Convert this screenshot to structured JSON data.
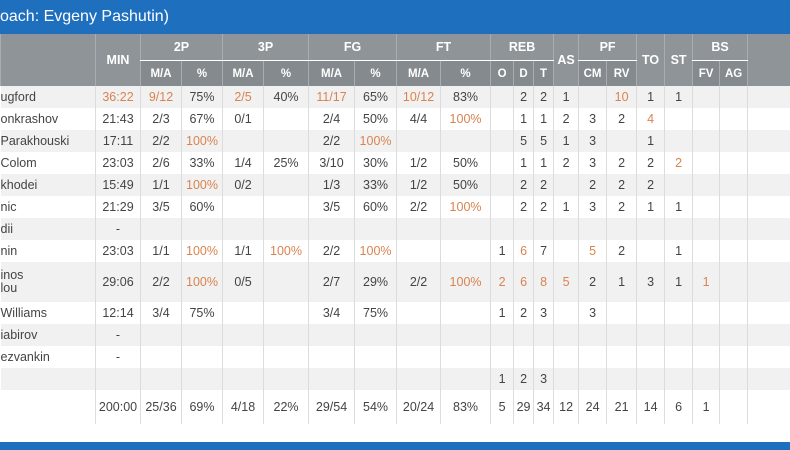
{
  "header": {
    "title": "oach: Evgeny Pashutin)"
  },
  "table": {
    "highlight_color": "#d9834f",
    "group_headers": [
      "MIN",
      "2P",
      "3P",
      "FG",
      "FT",
      "REB",
      "AS",
      "PF",
      "TO",
      "ST",
      "BS"
    ],
    "sub_headers": [
      "M/A",
      "%",
      "M/A",
      "%",
      "M/A",
      "%",
      "M/A",
      "%",
      "O",
      "D",
      "T",
      "CM",
      "RV",
      "FV",
      "AG"
    ],
    "rows": [
      [
        "ugford",
        {
          "text": "36:22",
          "highlight": true
        },
        {
          "text": "9/12",
          "highlight": true
        },
        "75%",
        {
          "text": "2/5",
          "highlight": true
        },
        "40%",
        {
          "text": "11/17",
          "highlight": true
        },
        "65%",
        {
          "text": "10/12",
          "highlight": true
        },
        "83%",
        null,
        "2",
        "2",
        "1",
        null,
        {
          "text": "10",
          "highlight": true
        },
        "1",
        "1",
        null,
        null
      ],
      [
        "onkrashov",
        "21:43",
        "2/3",
        "67%",
        "0/1",
        null,
        "2/4",
        "50%",
        "4/4",
        {
          "text": "100%",
          "highlight": true
        },
        null,
        "1",
        "1",
        "2",
        "3",
        "2",
        {
          "text": "4",
          "highlight": true
        },
        null,
        null,
        null
      ],
      [
        "Parakhouski",
        "17:11",
        "2/2",
        {
          "text": "100%",
          "highlight": true
        },
        null,
        null,
        "2/2",
        {
          "text": "100%",
          "highlight": true
        },
        null,
        null,
        null,
        "5",
        "5",
        "1",
        "3",
        null,
        "1",
        null,
        null,
        null
      ],
      [
        "Colom",
        "23:03",
        "2/6",
        "33%",
        "1/4",
        "25%",
        "3/10",
        "30%",
        "1/2",
        "50%",
        null,
        "1",
        "1",
        "2",
        "3",
        "2",
        "2",
        {
          "text": "2",
          "highlight": true
        },
        null,
        null
      ],
      [
        "khodei",
        "15:49",
        "1/1",
        {
          "text": "100%",
          "highlight": true
        },
        "0/2",
        null,
        "1/3",
        "33%",
        "1/2",
        "50%",
        null,
        "2",
        "2",
        null,
        "2",
        "2",
        "2",
        null,
        null,
        null
      ],
      [
        "nic",
        "21:29",
        "3/5",
        "60%",
        null,
        null,
        "3/5",
        "60%",
        "2/2",
        {
          "text": "100%",
          "highlight": true
        },
        null,
        "2",
        "2",
        "1",
        "3",
        "2",
        "1",
        "1",
        null,
        null
      ],
      [
        "dii",
        "-",
        null,
        null,
        null,
        null,
        null,
        null,
        null,
        null,
        null,
        null,
        null,
        null,
        null,
        null,
        null,
        null,
        null,
        null
      ],
      [
        "nin",
        "23:03",
        "1/1",
        {
          "text": "100%",
          "highlight": true
        },
        "1/1",
        {
          "text": "100%",
          "highlight": true
        },
        "2/2",
        {
          "text": "100%",
          "highlight": true
        },
        null,
        null,
        "1",
        {
          "text": "6",
          "highlight": true
        },
        "7",
        null,
        {
          "text": "5",
          "highlight": true
        },
        "2",
        null,
        "1",
        null,
        null
      ],
      [
        "inos\nlou",
        "29:06",
        "2/2",
        {
          "text": "100%",
          "highlight": true
        },
        "0/5",
        null,
        "2/7",
        "29%",
        "2/2",
        {
          "text": "100%",
          "highlight": true
        },
        {
          "text": "2",
          "highlight": true
        },
        {
          "text": "6",
          "highlight": true
        },
        {
          "text": "8",
          "highlight": true
        },
        {
          "text": "5",
          "highlight": true
        },
        "2",
        "1",
        "3",
        "1",
        {
          "text": "1",
          "highlight": true
        },
        null
      ],
      [
        "Williams",
        "12:14",
        "3/4",
        "75%",
        null,
        null,
        "3/4",
        "75%",
        null,
        null,
        "1",
        "2",
        "3",
        null,
        "3",
        null,
        null,
        null,
        null,
        null
      ],
      [
        "iabirov",
        "-",
        null,
        null,
        null,
        null,
        null,
        null,
        null,
        null,
        null,
        null,
        null,
        null,
        null,
        null,
        null,
        null,
        null,
        null
      ],
      [
        "ezvankin",
        "-",
        null,
        null,
        null,
        null,
        null,
        null,
        null,
        null,
        null,
        null,
        null,
        null,
        null,
        null,
        null,
        null,
        null,
        null
      ],
      [
        null,
        null,
        null,
        null,
        null,
        null,
        null,
        null,
        null,
        null,
        "1",
        "2",
        "3",
        null,
        null,
        null,
        null,
        null,
        null,
        null
      ],
      [
        null,
        "200:00",
        "25/36",
        "69%",
        "4/18",
        "22%",
        "29/54",
        "54%",
        "20/24",
        "83%",
        "5",
        "29",
        "34",
        "12",
        "24",
        "21",
        "14",
        "6",
        "1",
        null
      ]
    ]
  }
}
